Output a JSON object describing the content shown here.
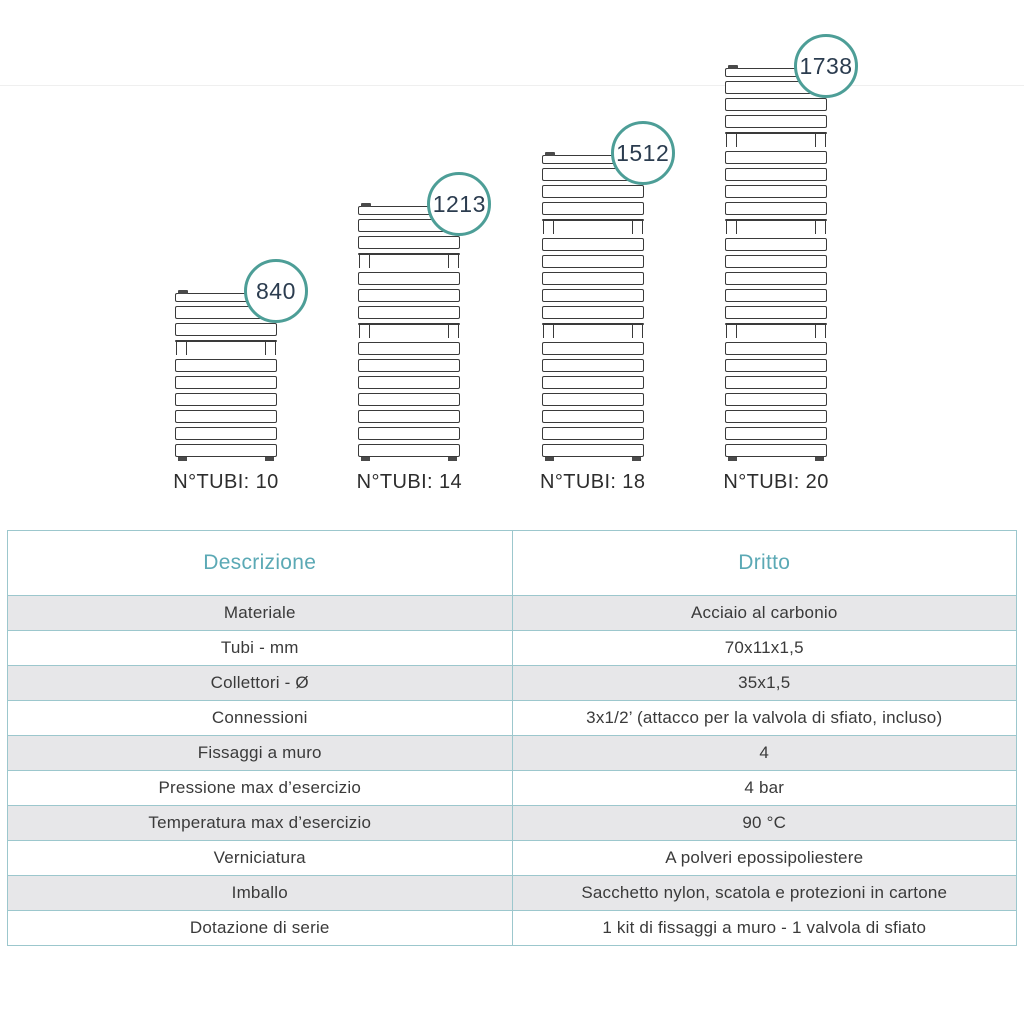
{
  "colors": {
    "teal_ring": "#4d9e97",
    "header_text": "#5ba9b5",
    "table_border": "#9cc7cd",
    "row_alt_bg": "#e7e7e9",
    "drawing_line": "#3a3a3a",
    "badge_text": "#2b3c4f"
  },
  "radiators": [
    {
      "badge": "840",
      "label": "N°TUBI: 10",
      "groups": [
        2,
        6
      ]
    },
    {
      "badge": "1213",
      "label": "N°TUBI: 14",
      "groups": [
        2,
        3,
        7
      ]
    },
    {
      "badge": "1512",
      "label": "N°TUBI: 18",
      "groups": [
        3,
        5,
        7
      ]
    },
    {
      "badge": "1738",
      "label": "N°TUBI: 20",
      "groups": [
        3,
        4,
        5,
        7
      ]
    }
  ],
  "table": {
    "headers": [
      "Descrizione",
      "Dritto"
    ],
    "rows": [
      {
        "label": "Materiale",
        "value": "Acciaio al carbonio"
      },
      {
        "label": "Tubi - mm",
        "value": "70x11x1,5"
      },
      {
        "label": "Collettori - Ø",
        "value": "35x1,5"
      },
      {
        "label": "Connessioni",
        "value": "3x1/2’ (attacco per la valvola di sfiato, incluso)"
      },
      {
        "label": "Fissaggi a muro",
        "value": "4"
      },
      {
        "label": "Pressione max d’esercizio",
        "value": "4 bar"
      },
      {
        "label": "Temperatura max d’esercizio",
        "value": "90 °C"
      },
      {
        "label": "Verniciatura",
        "value": "A polveri epossipoliestere"
      },
      {
        "label": "Imballo",
        "value": "Sacchetto nylon, scatola e protezioni in cartone"
      },
      {
        "label": "Dotazione di serie",
        "value": "1 kit di fissaggi a muro - 1 valvola di sfiato"
      }
    ]
  }
}
